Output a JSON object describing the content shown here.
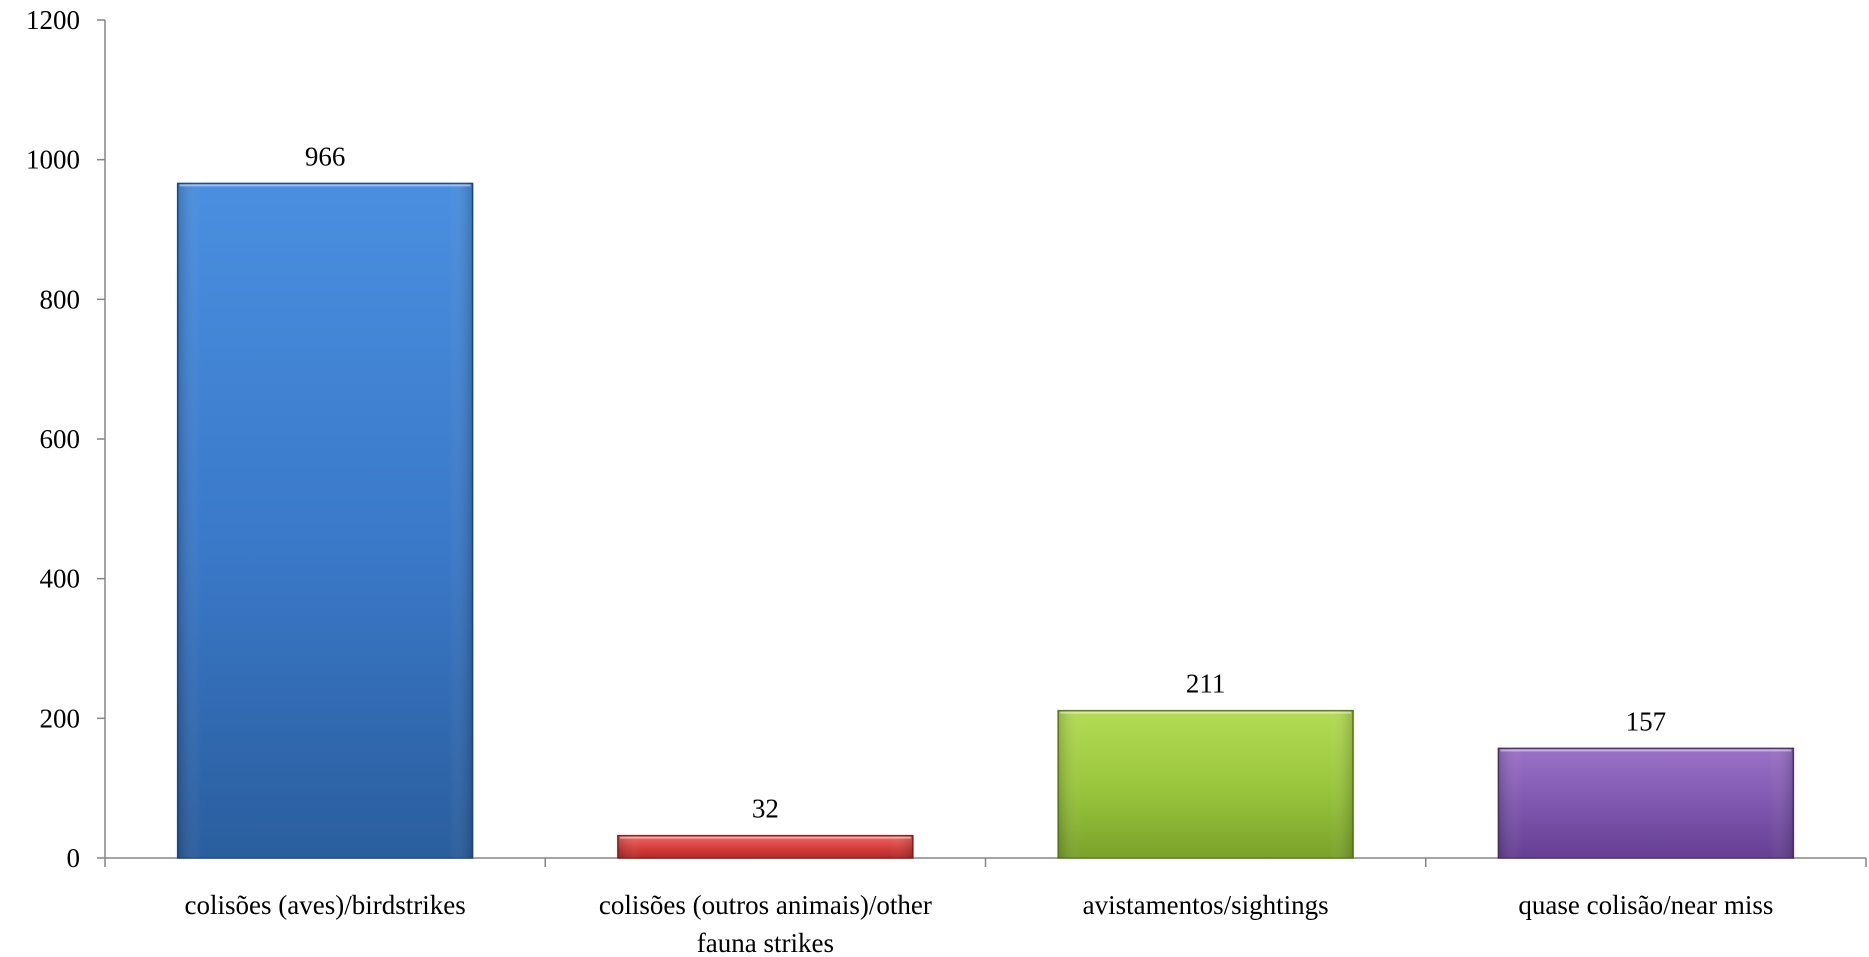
{
  "chart_data": {
    "type": "bar",
    "title": "",
    "xlabel": "",
    "ylabel": "",
    "ylim": [
      0,
      1200
    ],
    "yticks": [
      0,
      200,
      400,
      600,
      800,
      1000,
      1200
    ],
    "grid": false,
    "legend": "none",
    "categories": [
      [
        "colisões (aves)/birdstrikes"
      ],
      [
        "colisões (outros animais)/other",
        "fauna strikes"
      ],
      [
        "avistamentos/sightings"
      ],
      [
        "quase colisão/near miss"
      ]
    ],
    "values": [
      966,
      32,
      211,
      157
    ],
    "data_labels": [
      "966",
      "32",
      "211",
      "157"
    ],
    "colors": [
      {
        "light": "#4a8fe0",
        "mid": "#3a78c8",
        "dark": "#2a5e9e",
        "edge": "#1f4c86"
      },
      {
        "light": "#ee6a66",
        "mid": "#d63d3a",
        "dark": "#b02a28",
        "edge": "#8e1f1d"
      },
      {
        "light": "#b4dc55",
        "mid": "#98c43c",
        "dark": "#7aa22a",
        "edge": "#5e7f1e"
      },
      {
        "light": "#9b72c8",
        "mid": "#7d55ad",
        "dark": "#654092",
        "edge": "#4e3073"
      }
    ]
  }
}
